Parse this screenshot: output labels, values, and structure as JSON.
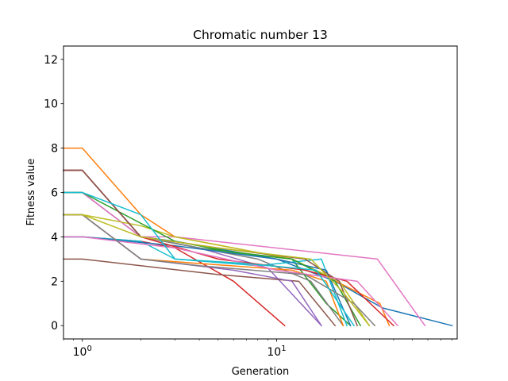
{
  "chart_data": {
    "type": "line",
    "title": "Chromatic number 13",
    "xlabel": "Generation",
    "ylabel": "Fitness value",
    "xscale": "log",
    "xlim": [
      0.8,
      85
    ],
    "ylim": [
      -0.6,
      12.6
    ],
    "xticks": [
      {
        "value": 1,
        "base": "10",
        "exp": "0"
      },
      {
        "value": 10,
        "base": "10",
        "exp": "1"
      }
    ],
    "yticks": [
      0,
      2,
      4,
      6,
      8,
      10,
      12
    ],
    "grid": false,
    "legend": "none",
    "series": [
      {
        "color": "#1f77b4",
        "x": [
          0.8,
          1,
          2,
          3,
          10,
          20,
          35,
          80
        ],
        "y": [
          7,
          7,
          4,
          3.8,
          3.0,
          2.0,
          0.8,
          0
        ]
      },
      {
        "color": "#ff7f0e",
        "x": [
          0.8,
          1,
          2,
          3,
          12,
          34,
          38
        ],
        "y": [
          8,
          8,
          5,
          4,
          3,
          1,
          0
        ]
      },
      {
        "color": "#2ca02c",
        "x": [
          0.8,
          1,
          2,
          4,
          12,
          18,
          24
        ],
        "y": [
          6,
          6,
          4,
          3.5,
          3,
          1,
          0
        ]
      },
      {
        "color": "#d62728",
        "x": [
          0.8,
          1,
          2,
          3,
          6,
          11
        ],
        "y": [
          4,
          4,
          3.8,
          3.5,
          2,
          0
        ]
      },
      {
        "color": "#9467bd",
        "x": [
          0.8,
          1,
          2,
          4,
          9,
          17
        ],
        "y": [
          6,
          6,
          4,
          3.5,
          2.6,
          0
        ]
      },
      {
        "color": "#8c564b",
        "x": [
          0.8,
          1,
          5,
          13,
          20
        ],
        "y": [
          3,
          3,
          2.3,
          2,
          0
        ]
      },
      {
        "color": "#e377c2",
        "x": [
          0.8,
          1,
          2,
          3,
          33,
          58
        ],
        "y": [
          6,
          6,
          4,
          4,
          3,
          0
        ]
      },
      {
        "color": "#7f7f7f",
        "x": [
          0.8,
          1,
          2,
          8,
          15,
          22
        ],
        "y": [
          7,
          7,
          4,
          3,
          2,
          0
        ]
      },
      {
        "color": "#bcbd22",
        "x": [
          0.8,
          1,
          2,
          3,
          12,
          21,
          30
        ],
        "y": [
          5,
          5,
          4.5,
          4,
          3,
          2,
          0
        ]
      },
      {
        "color": "#17becf",
        "x": [
          0.8,
          1,
          2,
          3,
          8,
          17,
          23
        ],
        "y": [
          4,
          4,
          3.8,
          3,
          2.7,
          3,
          0
        ]
      },
      {
        "color": "#1f77b4",
        "x": [
          0.8,
          1,
          3,
          10,
          18,
          24
        ],
        "y": [
          4,
          4,
          3.6,
          3,
          2.5,
          0
        ]
      },
      {
        "color": "#ff7f0e",
        "x": [
          0.8,
          1,
          2,
          4,
          12,
          18,
          22
        ],
        "y": [
          5,
          5,
          3,
          2.8,
          2.5,
          2,
          0
        ]
      },
      {
        "color": "#2ca02c",
        "x": [
          0.8,
          1,
          3,
          6,
          12,
          20,
          27
        ],
        "y": [
          6,
          6,
          3.8,
          3.3,
          3,
          2,
          0
        ]
      },
      {
        "color": "#d62728",
        "x": [
          0.8,
          1,
          2,
          5,
          14,
          23,
          40
        ],
        "y": [
          7,
          7,
          4,
          3,
          2.5,
          2,
          0
        ]
      },
      {
        "color": "#9467bd",
        "x": [
          0.8,
          1,
          2,
          6,
          12,
          17
        ],
        "y": [
          5,
          5,
          3,
          2.5,
          2,
          0
        ]
      },
      {
        "color": "#8c564b",
        "x": [
          0.8,
          1,
          2,
          5,
          14,
          21,
          26
        ],
        "y": [
          7,
          7,
          4,
          3.5,
          3,
          2,
          0
        ]
      },
      {
        "color": "#e377c2",
        "x": [
          0.8,
          1,
          3,
          10,
          26,
          42
        ],
        "y": [
          4,
          4,
          3.5,
          2.5,
          2,
          0
        ]
      },
      {
        "color": "#7f7f7f",
        "x": [
          0.8,
          1,
          2,
          4,
          14,
          25,
          32
        ],
        "y": [
          5,
          5,
          3,
          2.7,
          2.3,
          1,
          0
        ]
      },
      {
        "color": "#bcbd22",
        "x": [
          0.8,
          1,
          2,
          5,
          15,
          22,
          30
        ],
        "y": [
          5,
          5,
          4,
          3.5,
          3,
          1.5,
          0
        ]
      },
      {
        "color": "#17becf",
        "x": [
          0.8,
          1,
          2,
          3,
          7,
          16,
          25
        ],
        "y": [
          6,
          6,
          5,
          3,
          2.8,
          2.5,
          0
        ]
      }
    ]
  }
}
